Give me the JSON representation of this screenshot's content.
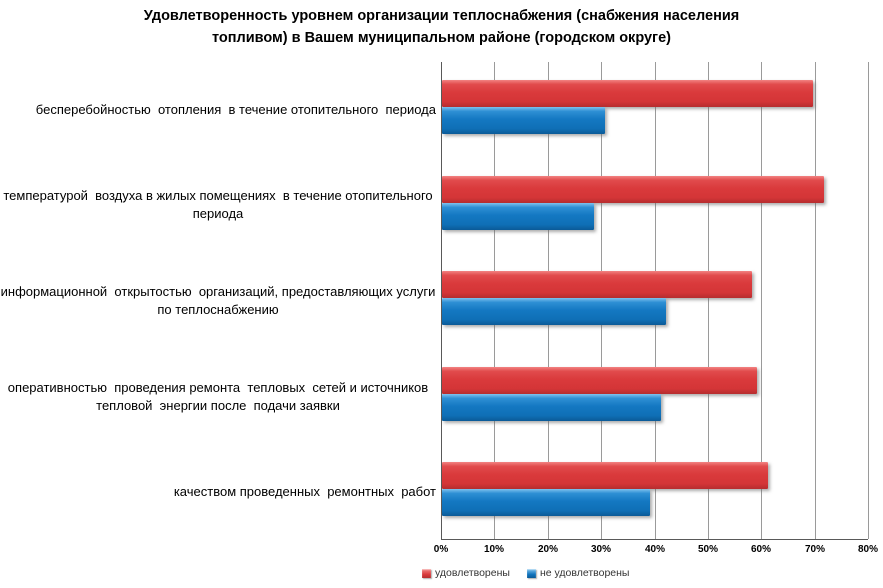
{
  "chart_data": {
    "type": "bar",
    "orientation": "horizontal",
    "title": "Удовлетворенность уровнем организации теплоснабжения (снабжения населения топливом) в Вашем муниципальном районе (городском округе)",
    "categories": [
      "бесперебойностью  отопления  в течение отопительного  периода",
      "температурой  воздуха в жилых помещениях  в течение отопительного периода",
      "информационной  открытостью  организаций, предоставляющих услуги по теплоснабжению",
      "оперативностью  проведения ремонта  тепловых  сетей и источников тепловой  энергии после  подачи заявки",
      "качеством проведенных  ремонтных  работ"
    ],
    "series": [
      {
        "name": "удовлетворены",
        "color": "#d93a3c",
        "values": [
          69.5,
          71.5,
          58,
          59,
          61
        ]
      },
      {
        "name": "не удовлетворены",
        "color": "#1173bc",
        "values": [
          30.5,
          28.5,
          42,
          41,
          39
        ]
      }
    ],
    "xlim": [
      0,
      80
    ],
    "x_ticks": [
      "0%",
      "10%",
      "20%",
      "30%",
      "40%",
      "50%",
      "60%",
      "70%",
      "80%"
    ],
    "tick_step": 10,
    "grid": true,
    "legend_position": "bottom",
    "colors": {
      "satisfied": "#d93a3c",
      "not_satisfied": "#1173bc",
      "gridline": "#9a9a9a",
      "axis": "#595959"
    }
  }
}
